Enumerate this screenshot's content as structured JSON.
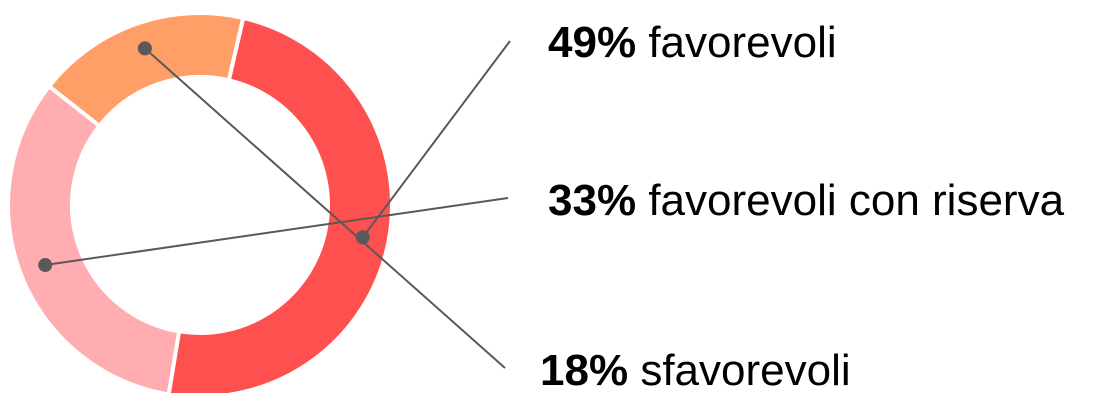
{
  "chart_data": {
    "type": "pie",
    "variant": "donut",
    "slices": [
      {
        "percent_label": "49%",
        "label": "favorevoli",
        "value": 49,
        "color": "#ff5050"
      },
      {
        "percent_label": "33%",
        "label": "favorevoli con riserva",
        "value": 33,
        "color": "#ffadb0"
      },
      {
        "percent_label": "18%",
        "label": "sfavorevoli",
        "value": 18,
        "color": "#ff9e66"
      }
    ],
    "leader_color": "#595959"
  }
}
